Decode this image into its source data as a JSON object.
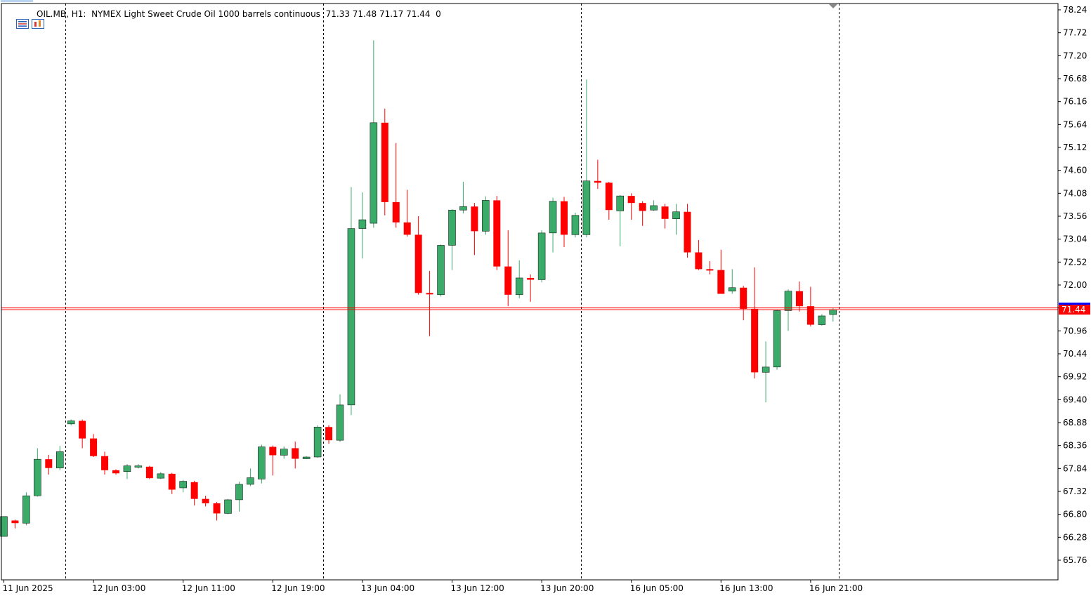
{
  "header": {
    "symbol": "OIL.MB",
    "timeframe": "H1:",
    "description": "NYMEX Light Sweet Crude Oil 1000 barrels continuous",
    "ohlc": "71.33 71.48 71.17 71.44",
    "volume": "0"
  },
  "current_price_label": "71.44",
  "colors": {
    "bull": "#3bab6a",
    "bear": "#ff0000",
    "grid_separator": "#000000",
    "bid_line": "#ff0000",
    "ask_line": "#0000ff",
    "axis": "#000000"
  },
  "icons": [
    "menu-icon",
    "chart-window-icon",
    "shift-marker-icon"
  ],
  "chart_data": {
    "type": "candlestick",
    "title": "",
    "ylim": [
      65.24,
      78.5
    ],
    "y_ticks": [
      "78.24",
      "77.72",
      "77.20",
      "76.68",
      "76.16",
      "75.64",
      "75.12",
      "74.60",
      "74.08",
      "73.56",
      "73.04",
      "72.52",
      "72.00",
      "71.48",
      "70.96",
      "70.44",
      "69.92",
      "69.40",
      "68.88",
      "68.36",
      "67.84",
      "67.32",
      "66.80",
      "66.28",
      "65.76"
    ],
    "x_ticks": [
      {
        "label": "11 Jun 2025",
        "index": 0
      },
      {
        "label": "12 Jun 03:00",
        "index": 8
      },
      {
        "label": "12 Jun 11:00",
        "index": 16
      },
      {
        "label": "12 Jun 19:00",
        "index": 24
      },
      {
        "label": "13 Jun 04:00",
        "index": 32
      },
      {
        "label": "13 Jun 12:00",
        "index": 40
      },
      {
        "label": "13 Jun 20:00",
        "index": 48
      },
      {
        "label": "16 Jun 05:00",
        "index": 56
      },
      {
        "label": "16 Jun 13:00",
        "index": 64
      },
      {
        "label": "16 Jun 21:00",
        "index": 72
      }
    ],
    "day_separators": [
      5.5,
      28.5,
      51.5,
      74.5
    ],
    "bid": 71.44,
    "ask": 71.48,
    "candles": [
      {
        "o": 66.3,
        "h": 66.75,
        "l": 66.3,
        "c": 66.75
      },
      {
        "o": 66.66,
        "h": 66.68,
        "l": 66.48,
        "c": 66.6
      },
      {
        "o": 66.6,
        "h": 67.3,
        "l": 66.55,
        "c": 67.22
      },
      {
        "o": 67.22,
        "h": 68.3,
        "l": 67.2,
        "c": 68.05
      },
      {
        "o": 68.05,
        "h": 68.15,
        "l": 67.7,
        "c": 67.85
      },
      {
        "o": 67.85,
        "h": 68.35,
        "l": 67.8,
        "c": 68.22
      },
      {
        "o": 68.85,
        "h": 68.95,
        "l": 68.82,
        "c": 68.92
      },
      {
        "o": 68.92,
        "h": 68.95,
        "l": 68.3,
        "c": 68.52
      },
      {
        "o": 68.52,
        "h": 68.62,
        "l": 68.1,
        "c": 68.12
      },
      {
        "o": 68.12,
        "h": 68.22,
        "l": 67.7,
        "c": 67.8
      },
      {
        "o": 67.8,
        "h": 67.82,
        "l": 67.7,
        "c": 67.73
      },
      {
        "o": 67.77,
        "h": 67.94,
        "l": 67.6,
        "c": 67.9
      },
      {
        "o": 67.88,
        "h": 67.94,
        "l": 67.84,
        "c": 67.9
      },
      {
        "o": 67.88,
        "h": 67.9,
        "l": 67.6,
        "c": 67.62
      },
      {
        "o": 67.62,
        "h": 67.76,
        "l": 67.6,
        "c": 67.72
      },
      {
        "o": 67.72,
        "h": 67.74,
        "l": 67.26,
        "c": 67.36
      },
      {
        "o": 67.4,
        "h": 67.58,
        "l": 67.3,
        "c": 67.55
      },
      {
        "o": 67.53,
        "h": 67.56,
        "l": 67.0,
        "c": 67.15
      },
      {
        "o": 67.15,
        "h": 67.22,
        "l": 66.98,
        "c": 67.05
      },
      {
        "o": 67.05,
        "h": 67.08,
        "l": 66.66,
        "c": 66.82
      },
      {
        "o": 66.82,
        "h": 67.15,
        "l": 66.8,
        "c": 67.13
      },
      {
        "o": 67.13,
        "h": 67.54,
        "l": 66.86,
        "c": 67.48
      },
      {
        "o": 67.48,
        "h": 67.84,
        "l": 67.44,
        "c": 67.63
      },
      {
        "o": 67.6,
        "h": 68.38,
        "l": 67.5,
        "c": 68.33
      },
      {
        "o": 68.33,
        "h": 68.36,
        "l": 67.68,
        "c": 68.14
      },
      {
        "o": 68.14,
        "h": 68.34,
        "l": 68.06,
        "c": 68.28
      },
      {
        "o": 68.3,
        "h": 68.45,
        "l": 67.84,
        "c": 68.06
      },
      {
        "o": 68.06,
        "h": 68.12,
        "l": 68.05,
        "c": 68.1
      },
      {
        "o": 68.1,
        "h": 68.82,
        "l": 68.08,
        "c": 68.78
      },
      {
        "o": 68.78,
        "h": 68.82,
        "l": 68.4,
        "c": 68.48
      },
      {
        "o": 68.48,
        "h": 69.52,
        "l": 68.44,
        "c": 69.28
      },
      {
        "o": 69.28,
        "h": 74.22,
        "l": 69.05,
        "c": 73.28
      },
      {
        "o": 73.28,
        "h": 74.1,
        "l": 72.6,
        "c": 73.48
      },
      {
        "o": 73.4,
        "h": 77.55,
        "l": 73.3,
        "c": 75.68
      },
      {
        "o": 75.68,
        "h": 76.0,
        "l": 73.58,
        "c": 73.88
      },
      {
        "o": 73.88,
        "h": 75.22,
        "l": 73.3,
        "c": 73.42
      },
      {
        "o": 73.42,
        "h": 74.16,
        "l": 73.1,
        "c": 73.14
      },
      {
        "o": 73.14,
        "h": 73.56,
        "l": 71.78,
        "c": 71.82
      },
      {
        "o": 71.82,
        "h": 72.32,
        "l": 70.84,
        "c": 71.8
      },
      {
        "o": 71.78,
        "h": 72.92,
        "l": 71.74,
        "c": 72.9
      },
      {
        "o": 72.9,
        "h": 73.72,
        "l": 72.34,
        "c": 73.7
      },
      {
        "o": 73.7,
        "h": 74.34,
        "l": 73.62,
        "c": 73.78
      },
      {
        "o": 73.78,
        "h": 73.86,
        "l": 72.68,
        "c": 73.22
      },
      {
        "o": 73.22,
        "h": 74.01,
        "l": 73.14,
        "c": 73.92
      },
      {
        "o": 73.92,
        "h": 74.02,
        "l": 72.34,
        "c": 72.42
      },
      {
        "o": 72.42,
        "h": 73.24,
        "l": 71.52,
        "c": 71.78
      },
      {
        "o": 71.78,
        "h": 72.56,
        "l": 71.7,
        "c": 72.16
      },
      {
        "o": 72.16,
        "h": 72.24,
        "l": 71.62,
        "c": 72.12
      },
      {
        "o": 72.12,
        "h": 73.24,
        "l": 72.06,
        "c": 73.18
      },
      {
        "o": 73.18,
        "h": 73.98,
        "l": 72.74,
        "c": 73.9
      },
      {
        "o": 73.9,
        "h": 74.0,
        "l": 72.86,
        "c": 73.14
      },
      {
        "o": 73.14,
        "h": 73.64,
        "l": 73.08,
        "c": 73.58
      },
      {
        "o": 73.14,
        "h": 76.66,
        "l": 73.08,
        "c": 74.36
      },
      {
        "o": 74.36,
        "h": 74.84,
        "l": 74.18,
        "c": 74.32
      },
      {
        "o": 74.32,
        "h": 74.34,
        "l": 73.48,
        "c": 73.7
      },
      {
        "o": 73.68,
        "h": 74.04,
        "l": 72.88,
        "c": 74.02
      },
      {
        "o": 74.02,
        "h": 74.08,
        "l": 73.48,
        "c": 73.86
      },
      {
        "o": 73.86,
        "h": 73.9,
        "l": 73.34,
        "c": 73.68
      },
      {
        "o": 73.7,
        "h": 73.92,
        "l": 73.68,
        "c": 73.8
      },
      {
        "o": 73.78,
        "h": 73.84,
        "l": 73.28,
        "c": 73.5
      },
      {
        "o": 73.5,
        "h": 73.84,
        "l": 73.14,
        "c": 73.66
      },
      {
        "o": 73.66,
        "h": 73.84,
        "l": 72.62,
        "c": 72.74
      },
      {
        "o": 72.74,
        "h": 73.02,
        "l": 72.34,
        "c": 72.36
      },
      {
        "o": 72.36,
        "h": 72.54,
        "l": 72.24,
        "c": 72.34
      },
      {
        "o": 72.34,
        "h": 72.8,
        "l": 71.8,
        "c": 71.8
      },
      {
        "o": 71.86,
        "h": 72.36,
        "l": 71.8,
        "c": 71.94
      },
      {
        "o": 71.94,
        "h": 71.98,
        "l": 71.2,
        "c": 71.46
      },
      {
        "o": 71.46,
        "h": 72.4,
        "l": 69.88,
        "c": 70.02
      },
      {
        "o": 70.02,
        "h": 70.72,
        "l": 69.34,
        "c": 70.14
      },
      {
        "o": 70.14,
        "h": 71.44,
        "l": 70.08,
        "c": 71.42
      },
      {
        "o": 71.42,
        "h": 71.9,
        "l": 70.96,
        "c": 71.86
      },
      {
        "o": 71.86,
        "h": 72.08,
        "l": 71.4,
        "c": 71.52
      },
      {
        "o": 71.52,
        "h": 71.96,
        "l": 71.06,
        "c": 71.1
      },
      {
        "o": 71.1,
        "h": 71.34,
        "l": 71.08,
        "c": 71.3
      },
      {
        "o": 71.33,
        "h": 71.48,
        "l": 71.17,
        "c": 71.44
      }
    ]
  }
}
